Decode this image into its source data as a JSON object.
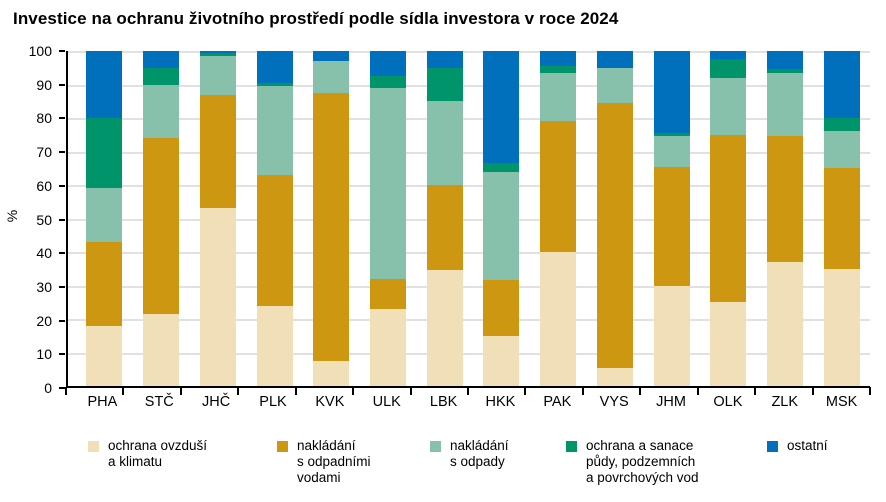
{
  "title": "Investice na ochranu životního prostředí podle sídla investora v roce 2024",
  "chart_data": {
    "type": "bar",
    "stacked": true,
    "title": "Investice na ochranu životního prostředí podle sídla investora v roce 2024",
    "ylabel": "%",
    "xlabel": "",
    "ylim": [
      0,
      100
    ],
    "yticks": [
      0,
      10,
      20,
      30,
      40,
      50,
      60,
      70,
      80,
      90,
      100
    ],
    "grid": true,
    "legend_position": "bottom",
    "categories": [
      "PHA",
      "STČ",
      "JHČ",
      "PLK",
      "KVK",
      "ULK",
      "LBK",
      "HKK",
      "PAK",
      "VYS",
      "JHM",
      "OLK",
      "ZLK",
      "MSK"
    ],
    "series": [
      {
        "name": "ochrana ovzduší a klimatu",
        "legend_lines": [
          "ochrana ovzduší",
          "a klimatu"
        ],
        "color": "#F0DFB7",
        "values": [
          18,
          21.5,
          53,
          24,
          7.5,
          23,
          34.5,
          15,
          40,
          5.5,
          30,
          25,
          37,
          35
        ]
      },
      {
        "name": "nakládání s odpadními vodami",
        "legend_lines": [
          "nakládání",
          "s odpadními",
          "vodami"
        ],
        "color": "#CD9712",
        "values": [
          25,
          52.5,
          34,
          39,
          80,
          9,
          25.5,
          16.5,
          39,
          79,
          35.5,
          50,
          37.5,
          30
        ]
      },
      {
        "name": "nakládání s odpady",
        "legend_lines": [
          "nakládání",
          "s odpady"
        ],
        "color": "#87C1AC",
        "values": [
          16,
          16,
          11.5,
          26.5,
          9.5,
          57,
          25,
          32.5,
          14.5,
          10.5,
          9,
          17,
          19,
          11
        ]
      },
      {
        "name": "ochrana a sanace půdy, podzemních a povrchových vod",
        "legend_lines": [
          "ochrana a sanace",
          "půdy, podzemních",
          "a povrchových vod"
        ],
        "color": "#00946B",
        "values": [
          21,
          5,
          1,
          1,
          0,
          3.5,
          10,
          2.5,
          2,
          0,
          1,
          5.5,
          1,
          4
        ]
      },
      {
        "name": "ostatní",
        "legend_lines": [
          "ostatní"
        ],
        "color": "#0070BD",
        "values": [
          20,
          5,
          0.5,
          9.5,
          3,
          7.5,
          5,
          33.5,
          4.5,
          5,
          24.5,
          2.5,
          5.5,
          20
        ]
      }
    ]
  },
  "colors": {
    "axis": "#000000",
    "gridline": "#c3c3c3",
    "background": "#ffffff"
  }
}
